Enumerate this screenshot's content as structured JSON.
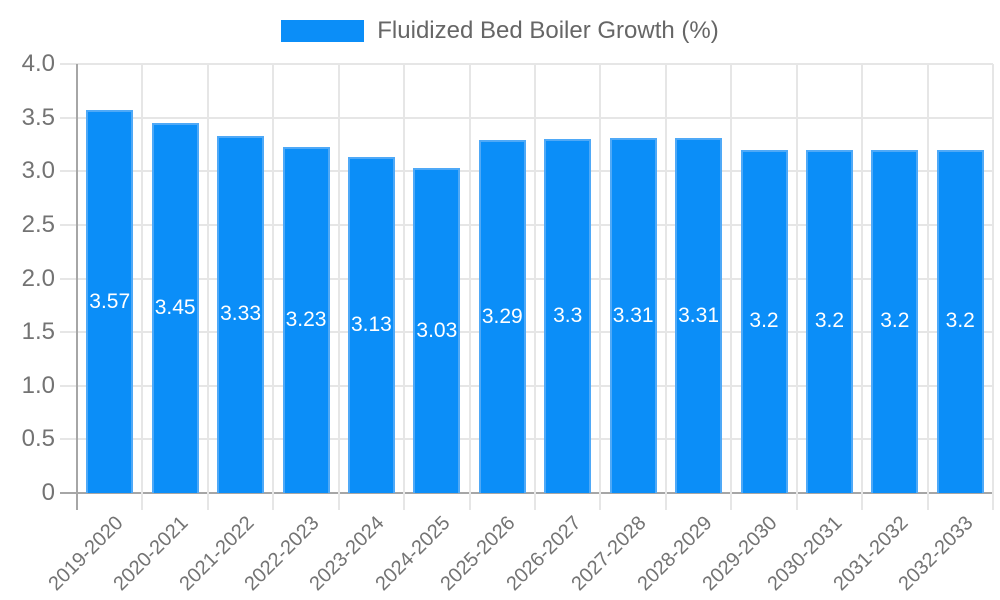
{
  "legend": {
    "label": "Fluidized Bed Boiler Growth (%)",
    "swatch_color": "#0b8ef8"
  },
  "chart_data": {
    "type": "bar",
    "title": "Fluidized Bed Boiler Growth (%)",
    "categories": [
      "2019-2020",
      "2020-2021",
      "2021-2022",
      "2022-2023",
      "2023-2024",
      "2024-2025",
      "2025-2026",
      "2026-2027",
      "2027-2028",
      "2028-2029",
      "2029-2030",
      "2030-2031",
      "2031-2032",
      "2032-2033"
    ],
    "values": [
      3.57,
      3.45,
      3.33,
      3.23,
      3.13,
      3.03,
      3.29,
      3.3,
      3.31,
      3.31,
      3.2,
      3.2,
      3.2,
      3.2
    ],
    "value_labels": [
      "3.57",
      "3.45",
      "3.33",
      "3.23",
      "3.13",
      "3.03",
      "3.29",
      "3.3",
      "3.31",
      "3.31",
      "3.2",
      "3.2",
      "3.2",
      "3.2"
    ],
    "xlabel": "",
    "ylabel": "",
    "ylim": [
      0,
      4.0
    ],
    "ytick_labels": [
      "0",
      "0.5",
      "1.0",
      "1.5",
      "2.0",
      "2.5",
      "3.0",
      "3.5",
      "4.0"
    ],
    "grid": true,
    "legend_position": "top",
    "value_label_position": "center-of-bar",
    "bar_color": "#0b8ef8",
    "bar_border_color": "#4fa9f7",
    "value_label_color": "#ffffff",
    "grid_color": "#e6e6e6",
    "axis_color": "#a6a6a6",
    "tick_text_color": "#737373",
    "legend_text_color": "#666666"
  }
}
